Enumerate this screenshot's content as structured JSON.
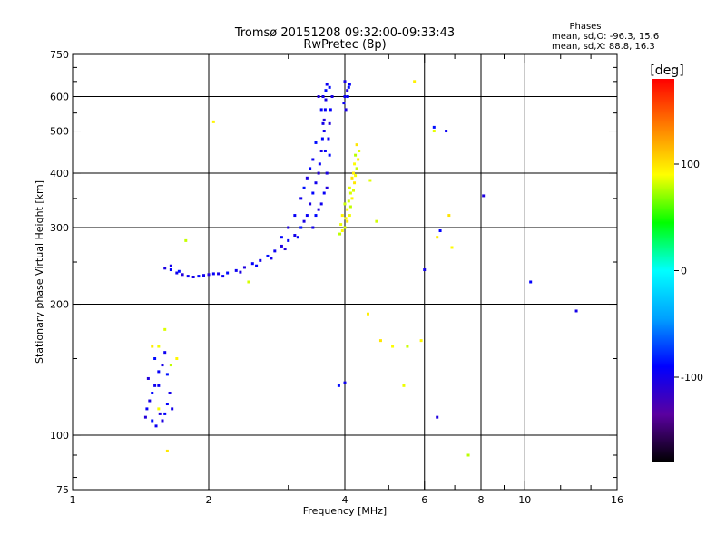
{
  "chart_data": {
    "type": "scatter",
    "title": "Tromsø 20151208 09:32:00-09:33:43",
    "subtitle": "RwPretec (8p)",
    "xlabel": "Frequency [MHz]",
    "ylabel": "Stationary phase Virtual Height [km]",
    "x_scale": "log",
    "y_scale": "log",
    "xlim": [
      1,
      16
    ],
    "ylim": [
      75,
      750
    ],
    "x_ticks": [
      1,
      2,
      4,
      6,
      8,
      10,
      16
    ],
    "y_ticks": [
      75,
      100,
      200,
      300,
      400,
      500,
      600,
      750
    ],
    "grid": true,
    "stats": {
      "heading": "Phases",
      "line_o": "mean, sd,O: -96.3, 15.6",
      "line_x": "mean, sd,X:  88.8, 16.3"
    },
    "colorbar": {
      "label": "[deg]",
      "range": [
        -180,
        180
      ],
      "ticks": [
        100,
        0,
        -100
      ],
      "colors": [
        "#000000",
        "#5a00a0",
        "#0000ff",
        "#00a0ff",
        "#00ffff",
        "#00ff00",
        "#ffff00",
        "#ff8000",
        "#ff0000"
      ]
    },
    "series": [
      {
        "description_key": "O",
        "phase_mean": -96.3,
        "points": [
          [
            1.45,
            110
          ],
          [
            1.46,
            115
          ],
          [
            1.48,
            120
          ],
          [
            1.5,
            125
          ],
          [
            1.52,
            130
          ],
          [
            1.47,
            135
          ],
          [
            1.55,
            140
          ],
          [
            1.58,
            145
          ],
          [
            1.52,
            150
          ],
          [
            1.6,
            155
          ],
          [
            1.56,
            112
          ],
          [
            1.62,
            118
          ],
          [
            1.64,
            125
          ],
          [
            1.5,
            108
          ],
          [
            1.53,
            105
          ],
          [
            1.58,
            108
          ],
          [
            1.6,
            112
          ],
          [
            1.66,
            115
          ],
          [
            1.62,
            138
          ],
          [
            1.55,
            130
          ],
          [
            1.6,
            242
          ],
          [
            1.65,
            240
          ],
          [
            1.7,
            236
          ],
          [
            1.75,
            234
          ],
          [
            1.8,
            232
          ],
          [
            1.85,
            231
          ],
          [
            1.9,
            232
          ],
          [
            1.95,
            233
          ],
          [
            2.0,
            234
          ],
          [
            2.05,
            235
          ],
          [
            2.1,
            235
          ],
          [
            2.2,
            236
          ],
          [
            2.3,
            239
          ],
          [
            2.4,
            243
          ],
          [
            2.5,
            248
          ],
          [
            2.6,
            252
          ],
          [
            2.7,
            258
          ],
          [
            2.8,
            265
          ],
          [
            2.9,
            272
          ],
          [
            3.0,
            280
          ],
          [
            3.1,
            288
          ],
          [
            3.2,
            300
          ],
          [
            3.3,
            320
          ],
          [
            3.35,
            340
          ],
          [
            3.4,
            360
          ],
          [
            3.45,
            380
          ],
          [
            3.5,
            400
          ],
          [
            3.52,
            420
          ],
          [
            3.55,
            450
          ],
          [
            3.57,
            480
          ],
          [
            3.6,
            500
          ],
          [
            3.6,
            530
          ],
          [
            3.62,
            560
          ],
          [
            3.63,
            590
          ],
          [
            3.63,
            620
          ],
          [
            3.65,
            640
          ],
          [
            3.5,
            600
          ],
          [
            3.55,
            560
          ],
          [
            3.58,
            520
          ],
          [
            3.45,
            470
          ],
          [
            3.4,
            430
          ],
          [
            3.3,
            390
          ],
          [
            3.35,
            410
          ],
          [
            3.2,
            350
          ],
          [
            3.25,
            370
          ],
          [
            3.1,
            320
          ],
          [
            3.0,
            300
          ],
          [
            2.9,
            285
          ],
          [
            3.4,
            300
          ],
          [
            3.5,
            330
          ],
          [
            3.6,
            360
          ],
          [
            3.65,
            400
          ],
          [
            3.7,
            440
          ],
          [
            3.68,
            480
          ],
          [
            3.7,
            520
          ],
          [
            3.72,
            560
          ],
          [
            3.75,
            600
          ],
          [
            3.7,
            630
          ],
          [
            4.0,
            600
          ],
          [
            4.05,
            620
          ],
          [
            4.1,
            640
          ],
          [
            4.0,
            650
          ],
          [
            4.08,
            630
          ],
          [
            3.98,
            580
          ],
          [
            4.02,
            560
          ],
          [
            4.06,
            600
          ],
          [
            1.65,
            245
          ],
          [
            1.72,
            238
          ],
          [
            2.15,
            232
          ],
          [
            2.35,
            237
          ],
          [
            2.55,
            245
          ],
          [
            2.75,
            255
          ],
          [
            2.95,
            268
          ],
          [
            3.15,
            285
          ],
          [
            3.25,
            310
          ],
          [
            3.45,
            320
          ],
          [
            3.55,
            340
          ],
          [
            3.65,
            370
          ],
          [
            3.62,
            450
          ],
          [
            3.58,
            600
          ],
          [
            3.88,
            130
          ],
          [
            4.0,
            132
          ],
          [
            6.4,
            110
          ],
          [
            10.3,
            225
          ],
          [
            13.0,
            193
          ],
          [
            6.3,
            510
          ],
          [
            6.7,
            500
          ],
          [
            8.1,
            355
          ],
          [
            6.5,
            295
          ],
          [
            6.0,
            240
          ]
        ]
      },
      {
        "description_key": "X",
        "phase_mean": 88.8,
        "points": [
          [
            3.9,
            290
          ],
          [
            3.95,
            295
          ],
          [
            4.0,
            300
          ],
          [
            4.05,
            310
          ],
          [
            4.1,
            320
          ],
          [
            4.12,
            335
          ],
          [
            4.15,
            350
          ],
          [
            4.18,
            365
          ],
          [
            4.2,
            380
          ],
          [
            4.22,
            395
          ],
          [
            4.25,
            410
          ],
          [
            4.28,
            430
          ],
          [
            4.3,
            450
          ],
          [
            4.25,
            465
          ],
          [
            4.05,
            330
          ],
          [
            4.0,
            340
          ],
          [
            3.95,
            320
          ],
          [
            4.1,
            370
          ],
          [
            4.15,
            390
          ],
          [
            4.2,
            420
          ],
          [
            4.08,
            345
          ],
          [
            4.18,
            400
          ],
          [
            3.92,
            305
          ],
          [
            4.22,
            440
          ],
          [
            4.02,
            315
          ],
          [
            4.12,
            360
          ],
          [
            1.5,
            160
          ],
          [
            1.55,
            160
          ],
          [
            1.65,
            145
          ],
          [
            1.7,
            150
          ],
          [
            1.6,
            175
          ],
          [
            1.62,
            92
          ],
          [
            1.55,
            115
          ],
          [
            1.78,
            280
          ],
          [
            2.05,
            525
          ],
          [
            4.55,
            385
          ],
          [
            4.8,
            165
          ],
          [
            5.1,
            160
          ],
          [
            5.5,
            160
          ],
          [
            5.7,
            650
          ],
          [
            6.3,
            500
          ],
          [
            6.8,
            320
          ],
          [
            6.9,
            270
          ],
          [
            4.7,
            310
          ],
          [
            4.5,
            190
          ],
          [
            5.4,
            130
          ],
          [
            7.5,
            90
          ],
          [
            5.9,
            165
          ],
          [
            2.45,
            225
          ],
          [
            6.4,
            285
          ]
        ]
      }
    ]
  }
}
